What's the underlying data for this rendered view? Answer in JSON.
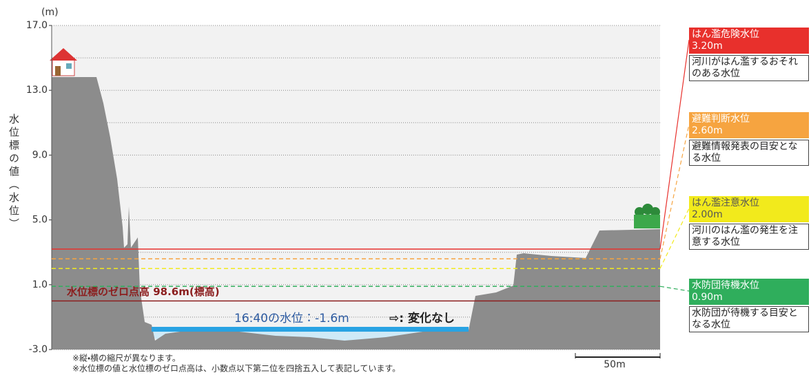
{
  "chart_data": {
    "type": "cross-section",
    "y_unit": "(m)",
    "y_label": "水位標の値（水位）",
    "ylim": [
      -3,
      17
    ],
    "yticks": [
      {
        "value": -3,
        "label": "-3.0"
      },
      {
        "value": 1,
        "label": "1.0"
      },
      {
        "value": 5,
        "label": "5.0"
      },
      {
        "value": 9,
        "label": "9.0"
      },
      {
        "value": 13,
        "label": "13.0"
      },
      {
        "value": 17,
        "label": "17.0"
      }
    ],
    "minor_yticks": [
      -1,
      3,
      7,
      11,
      15
    ],
    "grid": true,
    "levels": [
      {
        "name": "はん濫危険水位",
        "value": 3.2,
        "value_label": "3.20m",
        "description": "河川がはん濫するおそれのある水位",
        "color": "#e8302c",
        "text_color": "#ffffff",
        "style": "solid"
      },
      {
        "name": "避難判断水位",
        "value": 2.6,
        "value_label": "2.60m",
        "description": "避難情報発表の目安となる水位",
        "color": "#f6a440",
        "text_color": "#ffffff",
        "style": "dashed"
      },
      {
        "name": "はん濫注意水位",
        "value": 2.0,
        "value_label": "2.00m",
        "description": "河川のはん濫の発生を注意する水位",
        "color": "#f2ea1c",
        "text_color": "#555555",
        "style": "dashed"
      },
      {
        "name": "水防団待機水位",
        "value": 0.9,
        "value_label": "0.90m",
        "description": "水防団が待機する目安となる水位",
        "color": "#2fae5c",
        "text_color": "#ffffff",
        "style": "dashed"
      }
    ],
    "zero_line": {
      "value": 0,
      "label": "水位標のゼロ点高 98.6m(標高)",
      "color": "#8b1e1e"
    },
    "water": {
      "value": -1.6,
      "label": "16:40の水位：-1.6m",
      "change": "⇨: 変化なし",
      "color": "#29a3e3"
    },
    "scale_label": "50m",
    "notes": [
      "※縦・横の縮尺が異なります。",
      "※水位標の値と水位標のゼロ点高は、小数点以下第二位を四捨五入して表記しています。"
    ]
  }
}
